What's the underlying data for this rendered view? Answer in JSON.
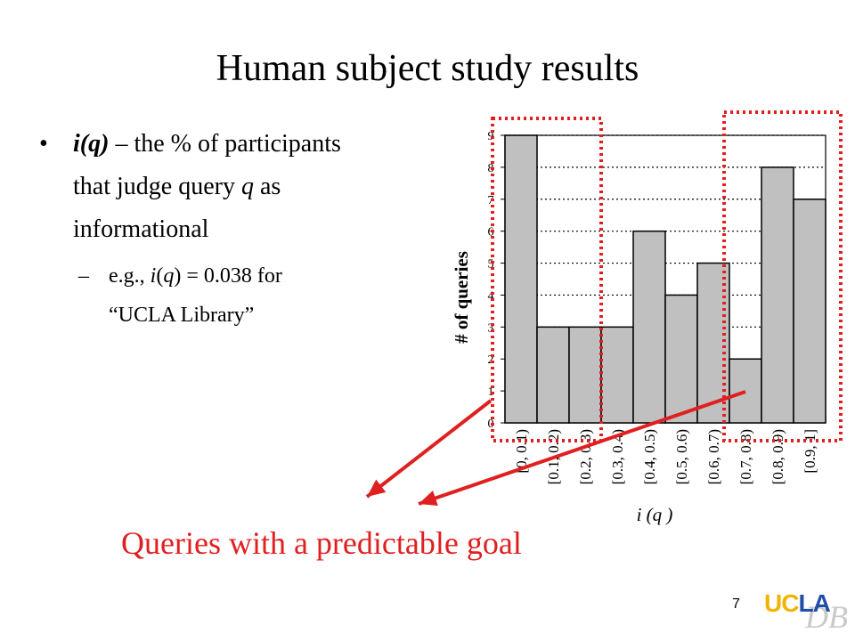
{
  "slide": {
    "title": "Human subject study results",
    "page_number": "7",
    "caption": "Queries with a predictable goal",
    "logo": {
      "text_ucla_u": "U",
      "text_ucla_c": "C",
      "text_ucla_la": "LA",
      "text_db": "DB"
    },
    "colors": {
      "caption": "#e02020",
      "arrow": "#e02020",
      "highlight_box": "#e02020",
      "logo_gold": "#f2b400",
      "logo_blue": "#1f4fa8"
    }
  },
  "bullets": {
    "b1_iq": "i(q)",
    "b1_rest_line1": " – the % of participants",
    "b1_line2_pre": "that judge query ",
    "b1_line2_q": "q",
    "b1_line2_post": " as",
    "b1_line3": "informational",
    "sub_pre": "e.g., ",
    "sub_i": "i",
    "sub_paren_open": "(",
    "sub_q": "q",
    "sub_post": ") = 0.038 for",
    "sub_line2": "“UCLA Library”"
  },
  "chart_data": {
    "type": "bar",
    "categories": [
      "[0, 0.1)",
      "[0.1, 0.2)",
      "[0.2, 0.3)",
      "[0.3, 0.4)",
      "[0.4, 0.5)",
      "[0.5, 0.6)",
      "[0.6, 0.7)",
      "[0.7, 0.8)",
      "[0.8, 0.9)",
      "[0.9, 1]"
    ],
    "values": [
      9,
      3,
      3,
      3,
      6,
      4,
      5,
      2,
      8,
      7
    ],
    "ylabel": "# of queries",
    "xlabel": "i (q )",
    "ylim": [
      0,
      9
    ],
    "yticks": [
      "0",
      "1",
      "2",
      "3",
      "4",
      "5",
      "6",
      "7",
      "8",
      "9"
    ],
    "grid": "dotted horizontal",
    "bar_color": "#c0c0c0",
    "highlighted_groups": [
      [
        "[0, 0.1)",
        "[0.1, 0.2)",
        "[0.2, 0.3)"
      ],
      [
        "[0.7, 0.8)",
        "[0.8, 0.9)",
        "[0.9, 1]"
      ]
    ]
  }
}
